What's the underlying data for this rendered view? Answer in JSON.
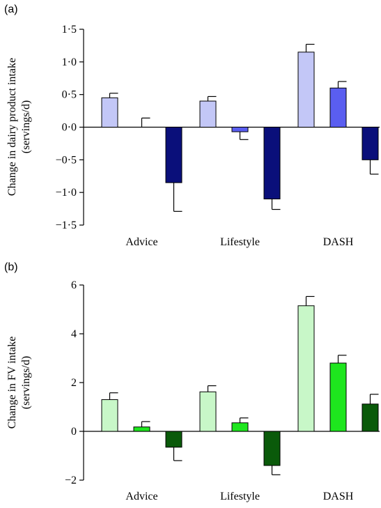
{
  "chart_data": [
    {
      "panel_label": "(a)",
      "type": "bar",
      "ylabel_lines": [
        "Change in dairy product intake",
        "(servings/d)"
      ],
      "categories": [
        "Advice",
        "Lifestyle",
        "DASH"
      ],
      "ylim": [
        -1.5,
        1.5
      ],
      "yticks": [
        1.5,
        1.0,
        0.5,
        0.0,
        -0.5,
        -1.0,
        -1.5
      ],
      "ytick_labels": [
        "1·5",
        "1·0",
        "0·5",
        "0·0",
        "−0·5",
        "−1·0",
        "−1·5"
      ],
      "series": [
        {
          "values": [
            0.45,
            0.4,
            1.15
          ],
          "errors": [
            0.07,
            0.07,
            0.12
          ],
          "color": "#c3c7f7"
        },
        {
          "values": [
            0.0,
            -0.07,
            0.6
          ],
          "errors": [
            0.14,
            0.12,
            0.1
          ],
          "color": "#5a5ef0"
        },
        {
          "values": [
            -0.85,
            -1.1,
            -0.5
          ],
          "errors": [
            0.44,
            0.16,
            0.22
          ],
          "color": "#0a0f7a"
        }
      ]
    },
    {
      "panel_label": "(b)",
      "type": "bar",
      "ylabel_lines": [
        "Change in FV intake",
        "(servings/d)"
      ],
      "categories": [
        "Advice",
        "Lifestyle",
        "DASH"
      ],
      "ylim": [
        -2,
        6
      ],
      "yticks": [
        6,
        4,
        2,
        0,
        -2
      ],
      "ytick_labels": [
        "6",
        "4",
        "2",
        "0",
        "−2"
      ],
      "series": [
        {
          "values": [
            1.3,
            1.62,
            5.15
          ],
          "errors": [
            0.28,
            0.25,
            0.38
          ],
          "color": "#c8f7c8"
        },
        {
          "values": [
            0.18,
            0.35,
            2.8
          ],
          "errors": [
            0.22,
            0.2,
            0.32
          ],
          "color": "#1ee61e"
        },
        {
          "values": [
            -0.65,
            -1.4,
            1.12
          ],
          "errors": [
            0.55,
            0.38,
            0.4
          ],
          "color": "#0a5a0a"
        }
      ]
    }
  ]
}
